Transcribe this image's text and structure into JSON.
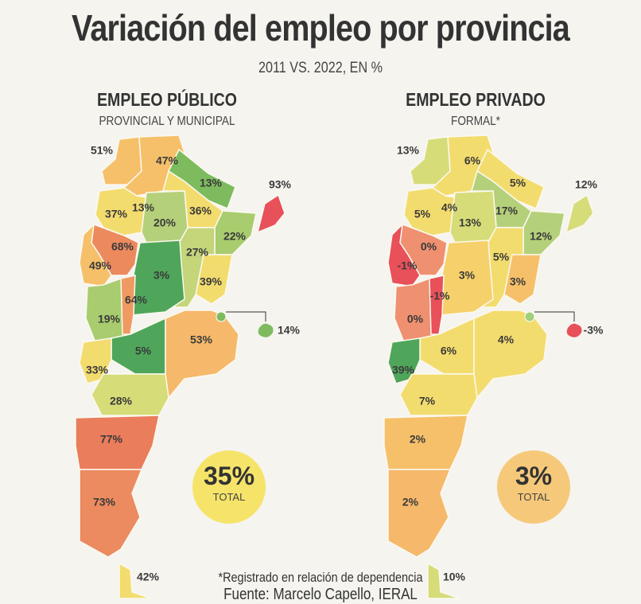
{
  "title": "Variación del empleo por provincia",
  "subtitle": "2011 VS. 2022, EN %",
  "maps": [
    {
      "heading": "EMPLEO PÚBLICO",
      "subheading": "PROVINCIAL Y MUNICIPAL",
      "total_value": "35%",
      "total_label": "TOTAL",
      "total_color": "#f6e46a",
      "provinces": {
        "jujuy": {
          "value": "51%",
          "color": "#f6c06a"
        },
        "salta": {
          "value": "47%",
          "color": "#f6c06a"
        },
        "formosa": {
          "value": "13%",
          "color": "#7dbb5e"
        },
        "chaco": {
          "value": "36%",
          "color": "#f3dc6e"
        },
        "tucuman": {
          "value": "13%",
          "color": "#6db45a"
        },
        "catamarca": {
          "value": "37%",
          "color": "#f3dc6e"
        },
        "santiago": {
          "value": "20%",
          "color": "#b5d07a"
        },
        "misiones": {
          "value": "93%",
          "color": "#e8505a"
        },
        "corrientes": {
          "value": "22%",
          "color": "#a8cc6e"
        },
        "santafe": {
          "value": "27%",
          "color": "#c4d57a"
        },
        "entrerios": {
          "value": "39%",
          "color": "#f3dc6e"
        },
        "larioja": {
          "value": "68%",
          "color": "#ec8a5e"
        },
        "sanjuan": {
          "value": "49%",
          "color": "#f6c06a"
        },
        "cordoba": {
          "value": "3%",
          "color": "#4fa65a"
        },
        "mendoza": {
          "value": "19%",
          "color": "#a8cc6e"
        },
        "sanluis": {
          "value": "64%",
          "color": "#ef9a62"
        },
        "lapampa": {
          "value": "5%",
          "color": "#4fa65a"
        },
        "buenosaires": {
          "value": "53%",
          "color": "#f6b86a"
        },
        "neuquen": {
          "value": "33%",
          "color": "#f3dc6e"
        },
        "rionegro": {
          "value": "28%",
          "color": "#d6dc78"
        },
        "chubut": {
          "value": "77%",
          "color": "#ea7d5c"
        },
        "santacruz": {
          "value": "73%",
          "color": "#ec8a60"
        },
        "tierradelfuego": {
          "value": "42%",
          "color": "#f3dc6e"
        },
        "caba": {
          "value": "14%",
          "color": "#7dbb5e"
        }
      }
    },
    {
      "heading": "EMPLEO PRIVADO",
      "subheading": "FORMAL*",
      "total_value": "3%",
      "total_label": "TOTAL",
      "total_color": "#f6c97a",
      "provinces": {
        "jujuy": {
          "value": "13%",
          "color": "#d6dc78"
        },
        "salta": {
          "value": "6%",
          "color": "#f3dc6e"
        },
        "formosa": {
          "value": "5%",
          "color": "#f3dc6e"
        },
        "chaco": {
          "value": "17%",
          "color": "#b5d07a"
        },
        "tucuman": {
          "value": "4%",
          "color": "#f6d06a"
        },
        "catamarca": {
          "value": "5%",
          "color": "#f3dc6e"
        },
        "santiago": {
          "value": "13%",
          "color": "#d6dc78"
        },
        "misiones": {
          "value": "12%",
          "color": "#d6dc78"
        },
        "corrientes": {
          "value": "12%",
          "color": "#b5d07a"
        },
        "santafe": {
          "value": "5%",
          "color": "#f3dc6e"
        },
        "entrerios": {
          "value": "3%",
          "color": "#f6c06a"
        },
        "larioja": {
          "value": "0%",
          "color": "#ef9070"
        },
        "sanjuan": {
          "value": "-1%",
          "color": "#e8505a"
        },
        "cordoba": {
          "value": "3%",
          "color": "#f6d06a"
        },
        "mendoza": {
          "value": "0%",
          "color": "#ef9070"
        },
        "sanluis": {
          "value": "-1%",
          "color": "#e8505a"
        },
        "lapampa": {
          "value": "6%",
          "color": "#f3dc6e"
        },
        "buenosaires": {
          "value": "4%",
          "color": "#f3dc6e"
        },
        "neuquen": {
          "value": "39%",
          "color": "#4fa65a"
        },
        "rionegro": {
          "value": "7%",
          "color": "#f3dc6e"
        },
        "chubut": {
          "value": "2%",
          "color": "#f6c06a"
        },
        "santacruz": {
          "value": "2%",
          "color": "#f6b86a"
        },
        "tierradelfuego": {
          "value": "10%",
          "color": "#d6dc78"
        },
        "caba": {
          "value": "-3%",
          "color": "#e8505a"
        }
      }
    }
  ],
  "footnote": "*Registrado en relación de dependencia",
  "source": "Fuente: Marcelo Capello, IERAL"
}
